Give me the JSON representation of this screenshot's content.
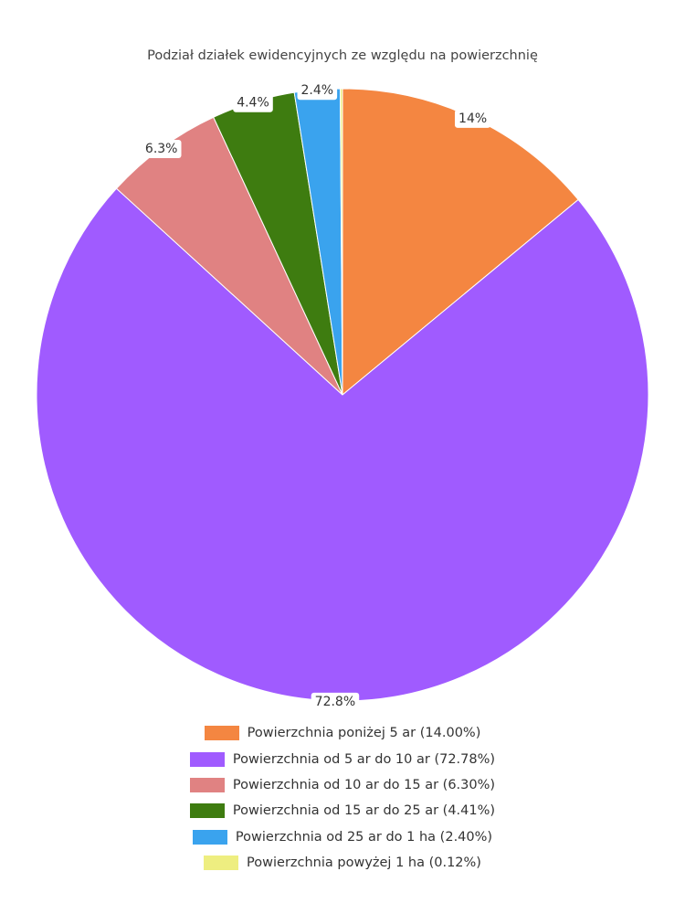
{
  "chart_data": {
    "type": "pie",
    "title": "Podział działek ewidencyjnych ze względu na powierzchnię",
    "start_angle_deg": 0,
    "direction": "clockwise",
    "legend_position": "bottom",
    "slices": [
      {
        "label": "Powierzchnia poniżej 5 ar",
        "value": 14.0,
        "data_label": "14%",
        "legend_text": "Powierzchnia poniżej 5 ar (14.00%)",
        "color": "#f48641"
      },
      {
        "label": "Powierzchnia od 5 ar do 10 ar",
        "value": 72.78,
        "data_label": "72.8%",
        "legend_text": "Powierzchnia od 5 ar do 10 ar (72.78%)",
        "color": "#a05bff"
      },
      {
        "label": "Powierzchnia od 10 ar do 15 ar",
        "value": 6.3,
        "data_label": "6.3%",
        "legend_text": "Powierzchnia od 10 ar do 15 ar (6.30%)",
        "color": "#e08282"
      },
      {
        "label": "Powierzchnia od 15 ar do 25 ar",
        "value": 4.41,
        "data_label": "4.4%",
        "legend_text": "Powierzchnia od 15 ar do 25 ar (4.41%)",
        "color": "#3e7c10"
      },
      {
        "label": "Powierzchnia od 25 ar do 1 ha",
        "value": 2.4,
        "data_label": "2.4%",
        "legend_text": "Powierzchnia od 25 ar do 1 ha (2.40%)",
        "color": "#3aa3ee"
      },
      {
        "label": "Powierzchnia powyżej 1 ha",
        "value": 0.12,
        "data_label": "",
        "legend_text": "Powierzchnia powyżej 1 ha (0.12%)",
        "color": "#eeee80"
      }
    ]
  }
}
